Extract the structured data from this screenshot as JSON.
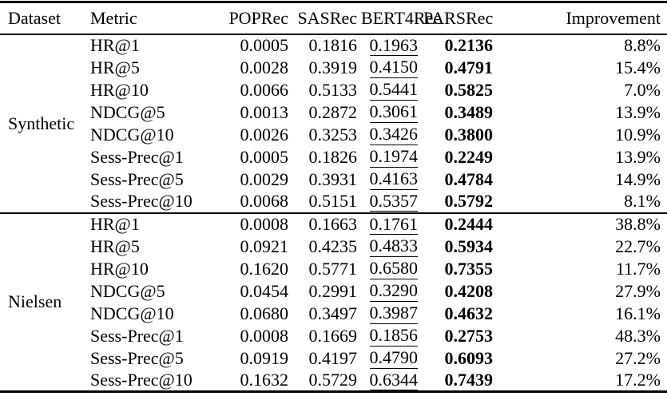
{
  "table": {
    "columns": [
      "Dataset",
      "Metric",
      "POPRec",
      "SASRec",
      "BERT4Rec",
      "PARSRec",
      "Improvement"
    ],
    "style_notes": {
      "underlined_column": "BERT4Rec",
      "bold_column": "PARSRec",
      "text_color": "#000000",
      "background_color": "#ffffff",
      "rule_color": "#000000"
    },
    "sections": [
      {
        "dataset": "Synthetic",
        "rows": [
          {
            "metric": "HR@1",
            "values": [
              "0.0005",
              "0.1816",
              "0.1963",
              "0.2136",
              "8.8%"
            ]
          },
          {
            "metric": "HR@5",
            "values": [
              "0.0028",
              "0.3919",
              "0.4150",
              "0.4791",
              "15.4%"
            ]
          },
          {
            "metric": "HR@10",
            "values": [
              "0.0066",
              "0.5133",
              "0.5441",
              "0.5825",
              "7.0%"
            ]
          },
          {
            "metric": "NDCG@5",
            "values": [
              "0.0013",
              "0.2872",
              "0.3061",
              "0.3489",
              "13.9%"
            ]
          },
          {
            "metric": "NDCG@10",
            "values": [
              "0.0026",
              "0.3253",
              "0.3426",
              "0.3800",
              "10.9%"
            ]
          },
          {
            "metric": "Sess-Prec@1",
            "values": [
              "0.0005",
              "0.1826",
              "0.1974",
              "0.2249",
              "13.9%"
            ]
          },
          {
            "metric": "Sess-Prec@5",
            "values": [
              "0.0029",
              "0.3931",
              "0.4163",
              "0.4784",
              "14.9%"
            ]
          },
          {
            "metric": "Sess-Prec@10",
            "values": [
              "0.0068",
              "0.5151",
              "0.5357",
              "0.5792",
              "8.1%"
            ]
          }
        ]
      },
      {
        "dataset": "Nielsen",
        "rows": [
          {
            "metric": "HR@1",
            "values": [
              "0.0008",
              "0.1663",
              "0.1761",
              "0.2444",
              "38.8%"
            ]
          },
          {
            "metric": "HR@5",
            "values": [
              "0.0921",
              "0.4235",
              "0.4833",
              "0.5934",
              "22.7%"
            ]
          },
          {
            "metric": "HR@10",
            "values": [
              "0.1620",
              "0.5771",
              "0.6580",
              "0.7355",
              "11.7%"
            ]
          },
          {
            "metric": "NDCG@5",
            "values": [
              "0.0454",
              "0.2991",
              "0.3290",
              "0.4208",
              "27.9%"
            ]
          },
          {
            "metric": "NDCG@10",
            "values": [
              "0.0680",
              "0.3497",
              "0.3987",
              "0.4632",
              "16.1%"
            ]
          },
          {
            "metric": "Sess-Prec@1",
            "values": [
              "0.0008",
              "0.1669",
              "0.1856",
              "0.2753",
              "48.3%"
            ]
          },
          {
            "metric": "Sess-Prec@5",
            "values": [
              "0.0919",
              "0.4197",
              "0.4790",
              "0.6093",
              "27.2%"
            ]
          },
          {
            "metric": "Sess-Prec@10",
            "values": [
              "0.1632",
              "0.5729",
              "0.6344",
              "0.7439",
              "17.2%"
            ]
          }
        ]
      }
    ]
  }
}
